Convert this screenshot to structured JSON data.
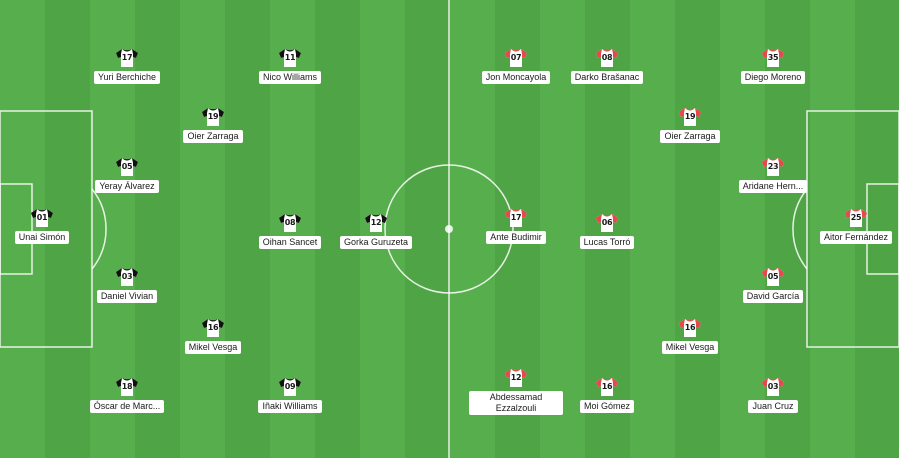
{
  "home": {
    "shirt": {
      "body": "#ffffff",
      "accent": "#111111"
    },
    "players": [
      {
        "number": "01",
        "name": "Unai Simón",
        "keeper": true
      },
      {
        "number": "17",
        "name": "Yuri Berchiche"
      },
      {
        "number": "05",
        "name": "Yeray Álvarez"
      },
      {
        "number": "03",
        "name": "Daniel Vivian"
      },
      {
        "number": "18",
        "name": "Óscar de Marc..."
      },
      {
        "number": "19",
        "name": "Oier Zarraga"
      },
      {
        "number": "16",
        "name": "Mikel Vesga"
      },
      {
        "number": "11",
        "name": "Nico Williams"
      },
      {
        "number": "08",
        "name": "Oihan Sancet"
      },
      {
        "number": "09",
        "name": "Iñaki Williams"
      },
      {
        "number": "12",
        "name": "Gorka Guruzeta"
      }
    ]
  },
  "away": {
    "shirt": {
      "body": "#ffffff",
      "accent": "#e5484d"
    },
    "players": [
      {
        "number": "25",
        "name": "Aitor Fernández",
        "keeper": true
      },
      {
        "number": "35",
        "name": "Diego Moreno"
      },
      {
        "number": "23",
        "name": "Aridane Hern..."
      },
      {
        "number": "05",
        "name": "David García"
      },
      {
        "number": "03",
        "name": "Juan Cruz"
      },
      {
        "number": "19",
        "name": "Oier Zarraga"
      },
      {
        "number": "16",
        "name": "Mikel Vesga"
      },
      {
        "number": "07",
        "name": "Jon Moncayola"
      },
      {
        "number": "08",
        "name": "Darko Brašanac"
      },
      {
        "number": "06",
        "name": "Lucas Torró"
      },
      {
        "number": "17",
        "name": "Ante Budimir"
      },
      {
        "number": "12",
        "name": "Abdessamad Ezzalzouli"
      },
      {
        "number": "16",
        "name": "Moi Gómez"
      }
    ]
  }
}
